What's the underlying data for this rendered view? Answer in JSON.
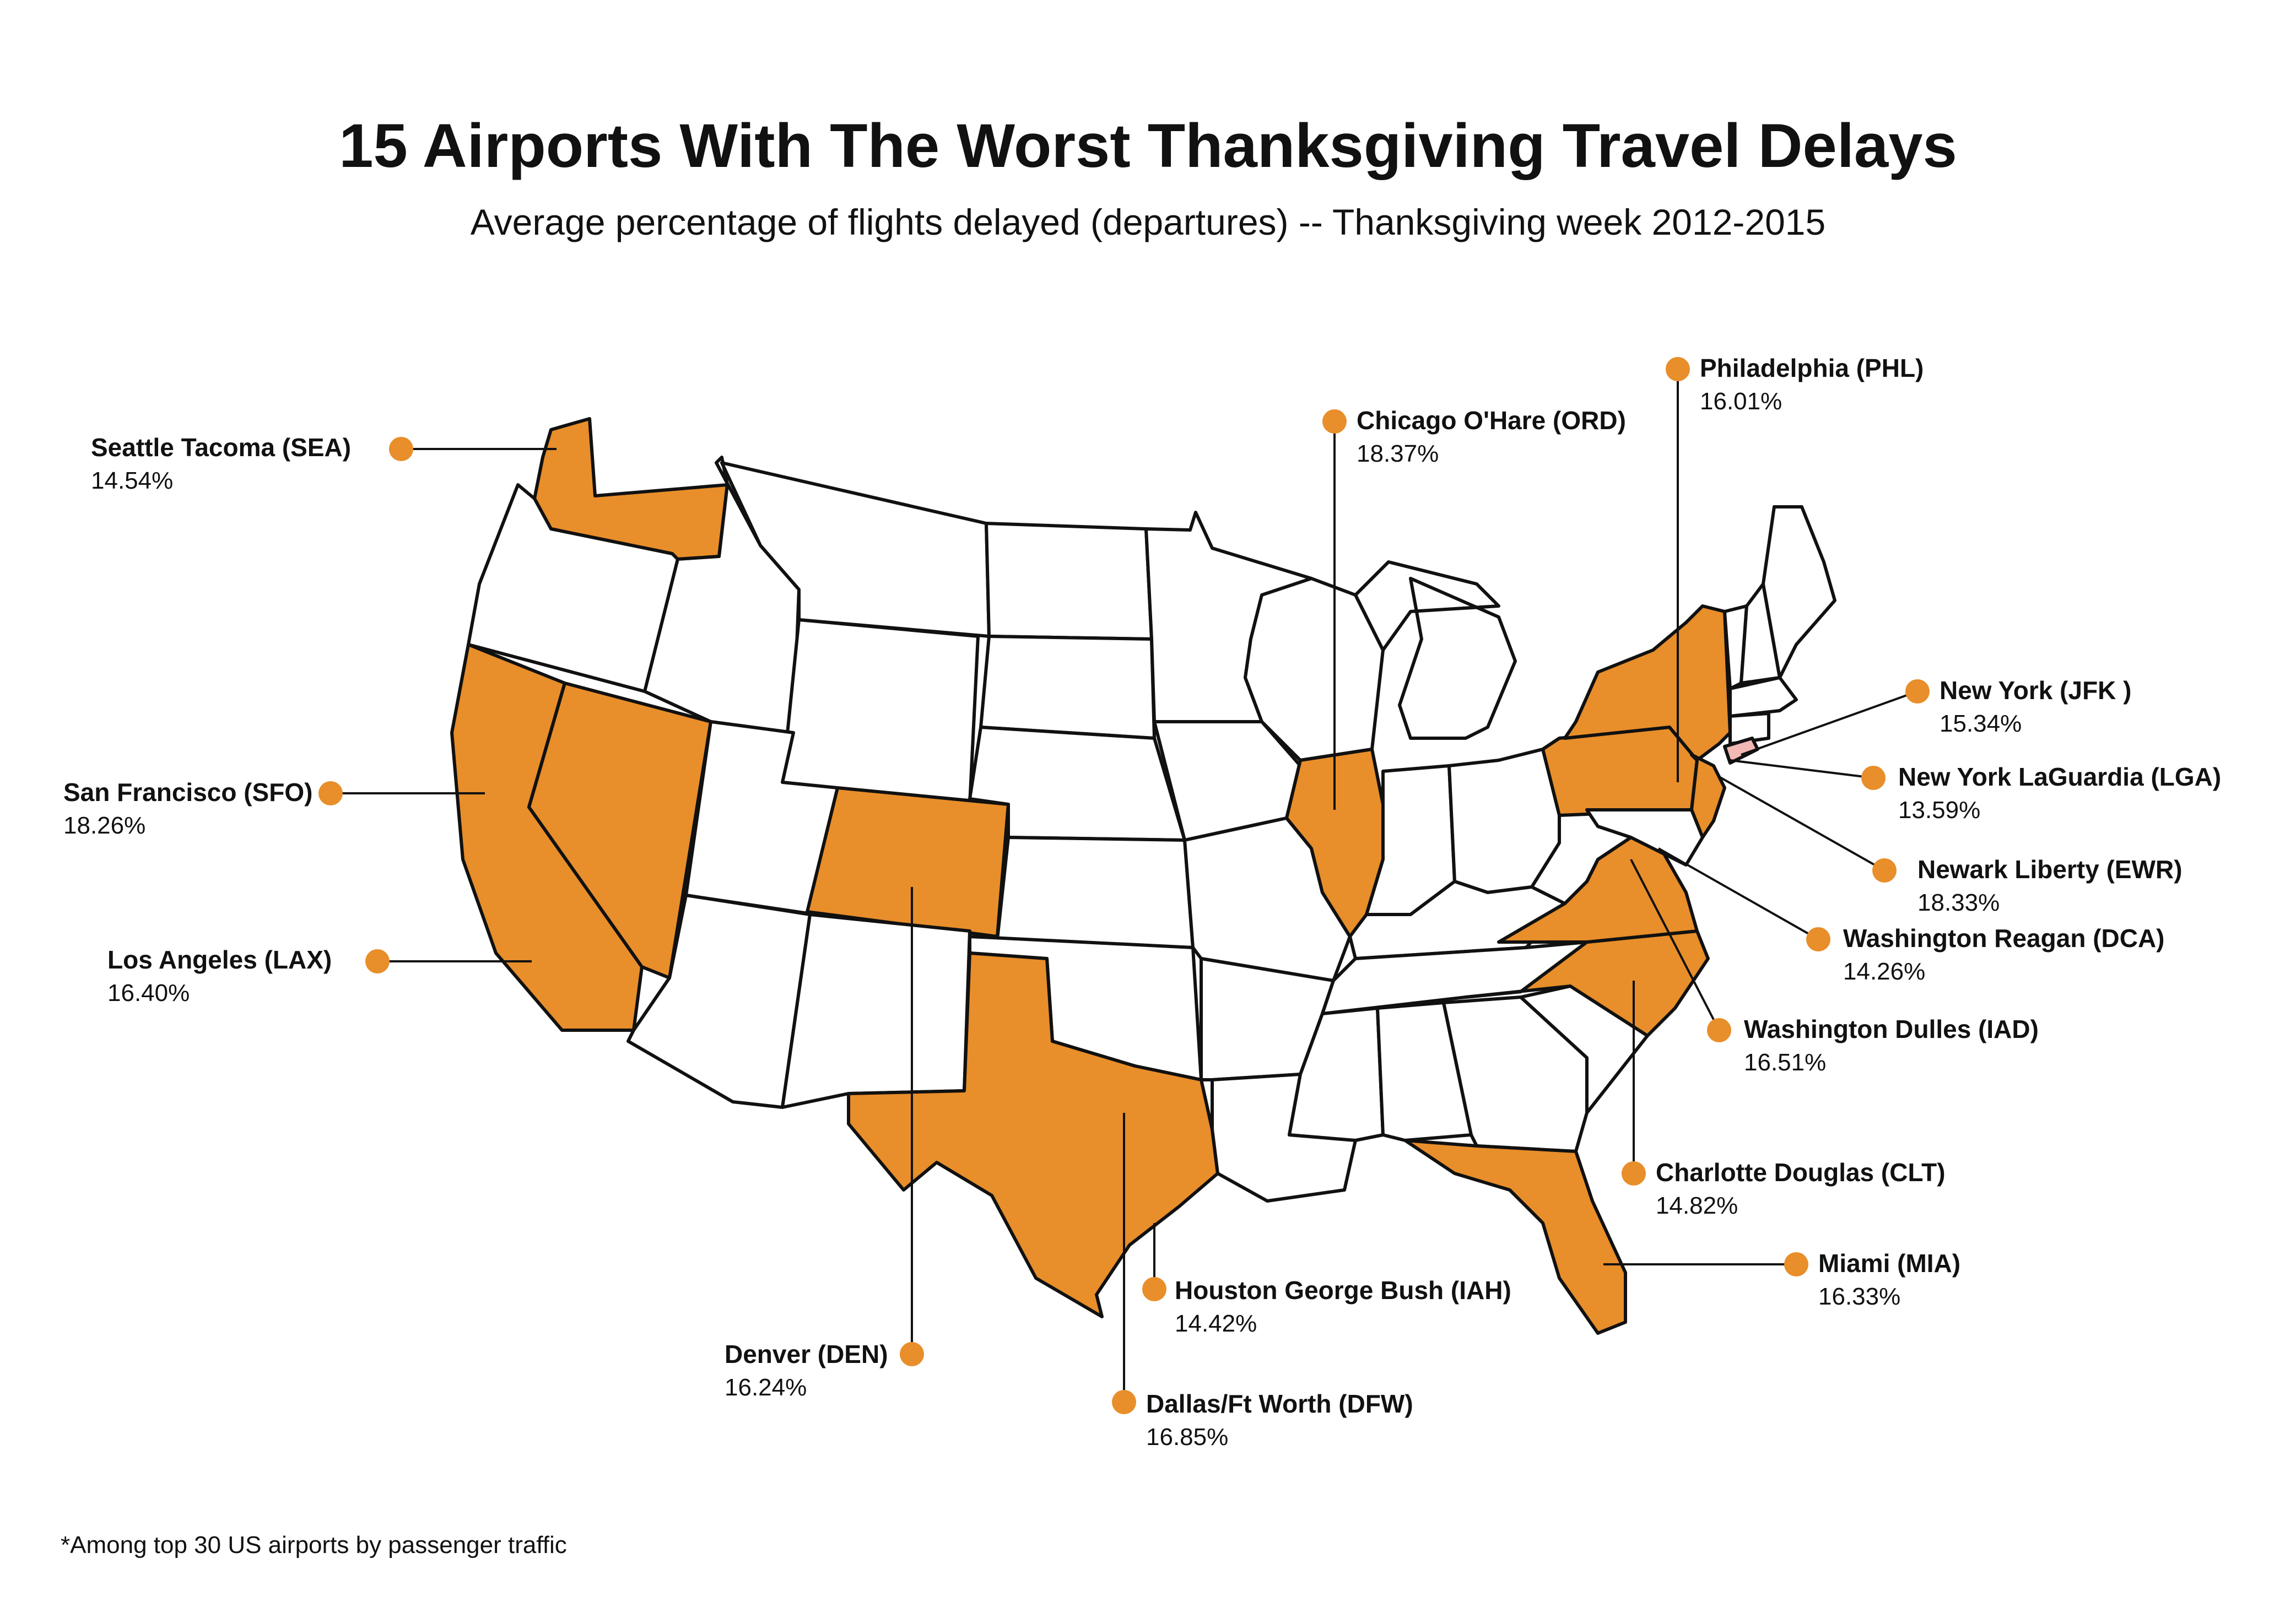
{
  "title": "15 Airports With The Worst Thanksgiving Travel Delays",
  "subtitle": "Average percentage of flights delayed (departures) -- Thanksgiving week 2012-2015",
  "footnote": "*Among top 30 US airports by passenger traffic",
  "colors": {
    "highlight": "#E88E2A",
    "nyc_area": "#F2B8B3",
    "base": "#ffffff",
    "outline": "#111111"
  },
  "airports": [
    {
      "name": "Seattle Tacoma (SEA)",
      "value": "14.54%"
    },
    {
      "name": "San Francisco (SFO)",
      "value": "18.26%"
    },
    {
      "name": "Los Angeles (LAX)",
      "value": "16.40%"
    },
    {
      "name": "Chicago O'Hare (ORD)",
      "value": "18.37%"
    },
    {
      "name": "Philadelphia (PHL)",
      "value": "16.01%"
    },
    {
      "name": "New York (JFK )",
      "value": "15.34%"
    },
    {
      "name": "New York LaGuardia (LGA)",
      "value": "13.59%"
    },
    {
      "name": "Newark Liberty (EWR)",
      "value": "18.33%"
    },
    {
      "name": "Washington Reagan (DCA)",
      "value": "14.26%"
    },
    {
      "name": "Washington Dulles (IAD)",
      "value": "16.51%"
    },
    {
      "name": "Charlotte Douglas (CLT)",
      "value": "14.82%"
    },
    {
      "name": "Miami (MIA)",
      "value": "16.33%"
    },
    {
      "name": "Houston George Bush (IAH)",
      "value": "14.42%"
    },
    {
      "name": "Dallas/Ft Worth (DFW)",
      "value": "16.85%"
    },
    {
      "name": "Denver (DEN)",
      "value": "16.24%"
    }
  ]
}
